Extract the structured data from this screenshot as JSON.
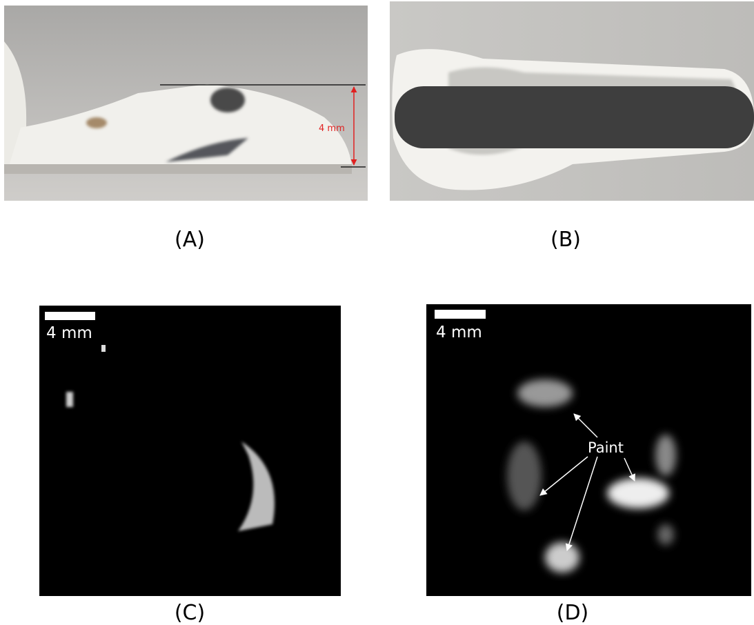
{
  "panels": [
    {
      "label": "(A)",
      "annotation": "4 mm"
    },
    {
      "label": "(B)"
    },
    {
      "label": "(C)",
      "scale_bar": "4 mm"
    },
    {
      "label": "(D)",
      "scale_bar": "4 mm",
      "annotation": "Paint"
    }
  ]
}
